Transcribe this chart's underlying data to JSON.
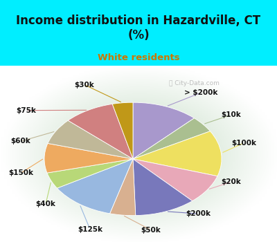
{
  "title": "Income distribution in Hazardville, CT\n(%)",
  "subtitle": "White residents",
  "title_color": "#111111",
  "subtitle_color": "#cc7700",
  "bg_cyan": "#00eeff",
  "labels": [
    "> $200k",
    "$10k",
    "$100k",
    "$20k",
    "$200k",
    "$50k",
    "$125k",
    "$40k",
    "$150k",
    "$60k",
    "$75k",
    "$30k"
  ],
  "values": [
    13,
    5,
    14,
    9,
    12,
    5,
    13,
    5,
    9,
    8,
    10,
    4
  ],
  "colors": [
    "#a898cc",
    "#aabf90",
    "#eee060",
    "#e8a8b8",
    "#7878bb",
    "#d8b090",
    "#98b8e0",
    "#b8d878",
    "#eeaa60",
    "#c0b898",
    "#d08080",
    "#c09818"
  ],
  "startangle": 90,
  "label_fontsize": 7.5
}
